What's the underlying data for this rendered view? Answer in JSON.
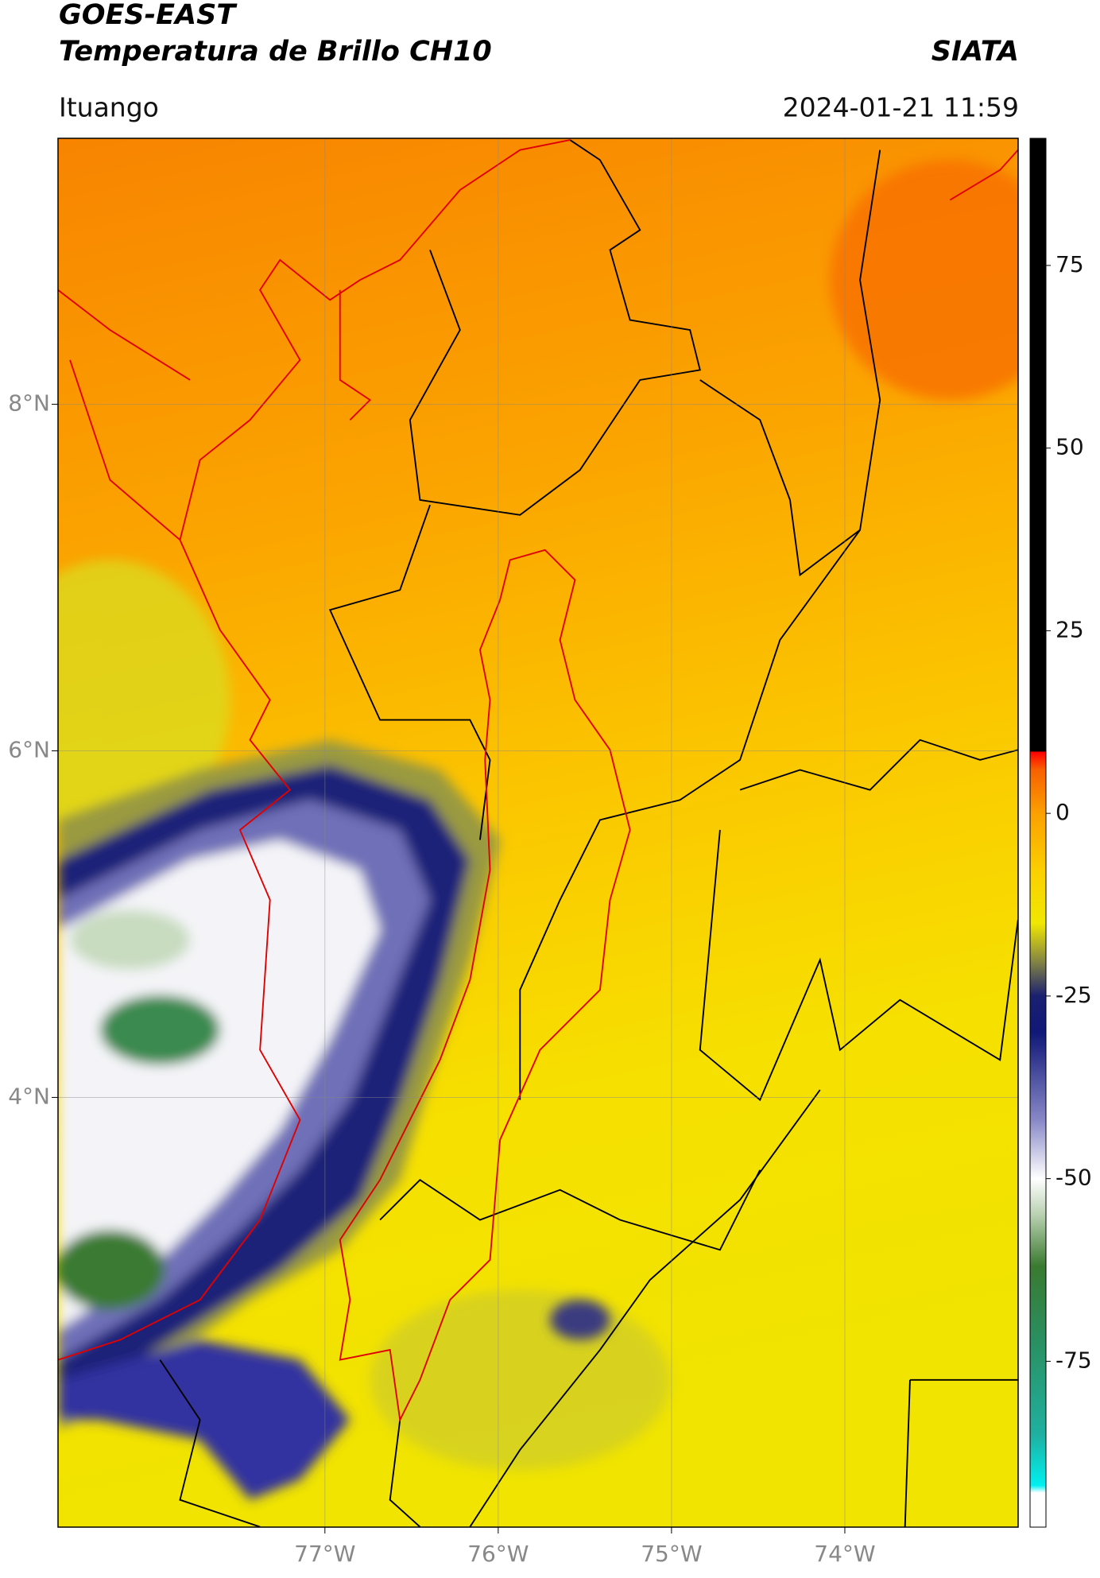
{
  "header": {
    "title": "GOES-EAST",
    "subtitle": "Temperatura de Brillo CH10",
    "agency": "SIATA",
    "region": "Ituango",
    "datetime": "2024-01-21 11:59"
  },
  "map": {
    "lon_range": [
      -78.54,
      -73.0
    ],
    "lat_range": [
      1.52,
      9.535
    ],
    "lon_ticks": [
      {
        "value": -77,
        "label": "77°W"
      },
      {
        "value": -76,
        "label": "76°W"
      },
      {
        "value": -75,
        "label": "75°W"
      },
      {
        "value": -74,
        "label": "74°W"
      }
    ],
    "lat_ticks": [
      {
        "value": 8,
        "label": "8°N"
      },
      {
        "value": 6,
        "label": "6°N"
      },
      {
        "value": 4,
        "label": "4°N"
      }
    ],
    "grid": true
  },
  "colorbar": {
    "range": [
      -97.7,
      92.4
    ],
    "ticks": [
      75,
      50,
      25,
      0,
      -25,
      -50,
      -75
    ],
    "colors": [
      {
        "value": -97.7,
        "color": "#ffffff"
      },
      {
        "value": -93,
        "color": "#ffffff"
      },
      {
        "value": -92,
        "color": "#00f0f0"
      },
      {
        "value": -85,
        "color": "#20b0a0"
      },
      {
        "value": -72,
        "color": "#2a8f60"
      },
      {
        "value": -62,
        "color": "#3a7a30"
      },
      {
        "value": -55,
        "color": "#b8d0b0"
      },
      {
        "value": -50,
        "color": "#ffffff"
      },
      {
        "value": -42,
        "color": "#8888c8"
      },
      {
        "value": -30,
        "color": "#101878"
      },
      {
        "value": -25,
        "color": "#1a2070"
      },
      {
        "value": -20,
        "color": "#8a8a40"
      },
      {
        "value": -15,
        "color": "#f0e800"
      },
      {
        "value": -8,
        "color": "#fbd000"
      },
      {
        "value": 0,
        "color": "#fba000"
      },
      {
        "value": 6,
        "color": "#f86000"
      },
      {
        "value": 8.4,
        "color": "#ff0000"
      },
      {
        "value": 8.5,
        "color": "#000000"
      },
      {
        "value": 92.4,
        "color": "#000000"
      }
    ]
  }
}
